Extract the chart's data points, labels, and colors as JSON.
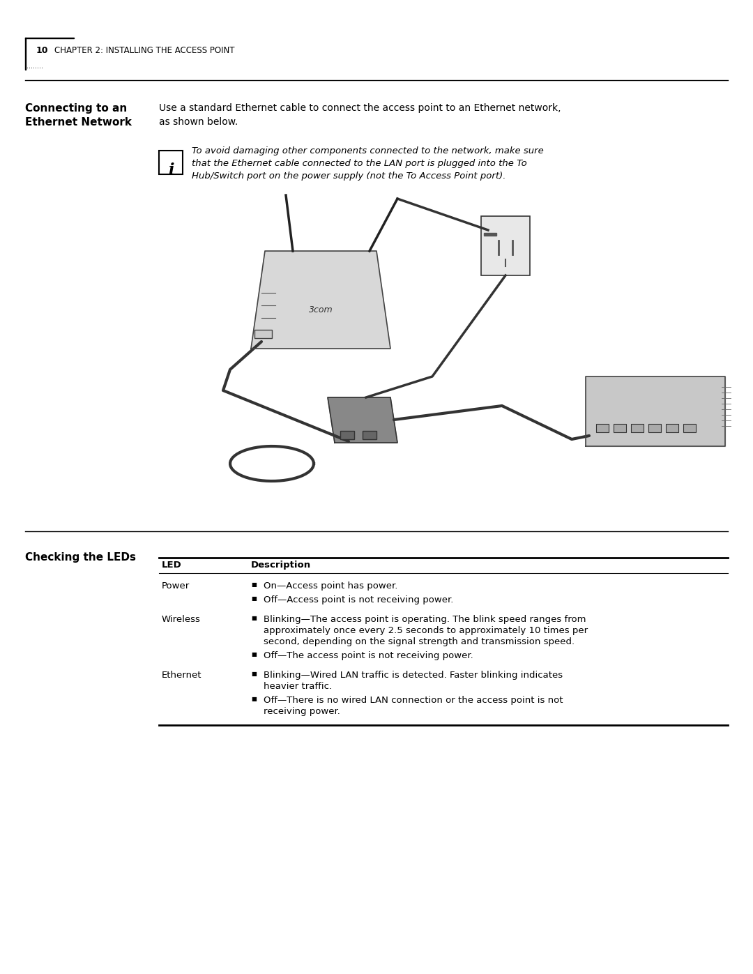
{
  "bg_color": "#ffffff",
  "page_number": "10",
  "chapter_header": "CHAPTER 2: INSTALLING THE ACCESS POINT",
  "section1_title": "Connecting to an\nEthernet Network",
  "section1_body": "Use a standard Ethernet cable to connect the access point to an Ethernet network,\nas shown below.",
  "note_text": "To avoid damaging other components connected to the network, make sure\nthat the Ethernet cable connected to the LAN port is plugged into the To\nHub/Switch port on the power supply (not the To Access Point port).",
  "section2_title": "Checking the LEDs",
  "table_header_led": "LED",
  "table_header_desc": "Description",
  "table_rows": [
    {
      "led": "Power",
      "bullets": [
        "On—Access point has power.",
        "Off—Access point is not receiving power."
      ]
    },
    {
      "led": "Wireless",
      "bullets": [
        "Blinking—The access point is operating. The blink speed ranges from\napproximately once every 2.5 seconds to approximately 10 times per\nsecond, depending on the signal strength and transmission speed.",
        "Off—The access point is not receiving power."
      ]
    },
    {
      "led": "Ethernet",
      "bullets": [
        "Blinking—Wired LAN traffic is detected. Faster blinking indicates\nheavier traffic.",
        "Off—There is no wired LAN connection or the access point is not\nreceiving power."
      ]
    }
  ]
}
